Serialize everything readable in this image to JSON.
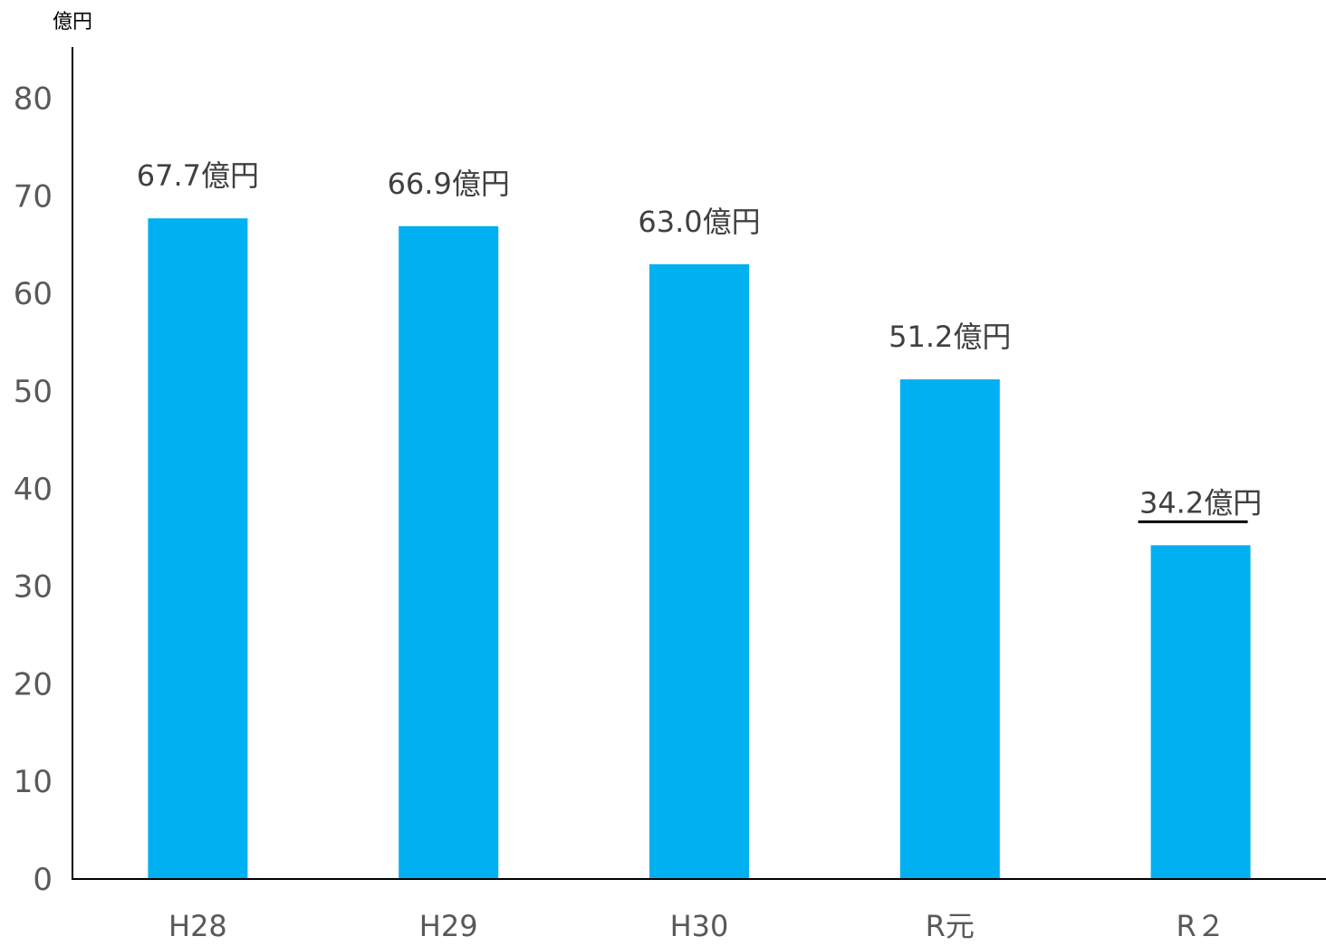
{
  "chart_data": {
    "type": "bar",
    "ylabel": "億円",
    "categories": [
      "H28",
      "H29",
      "H30",
      "R元",
      "R２"
    ],
    "values": [
      67.7,
      66.9,
      63.0,
      51.2,
      34.2
    ],
    "data_labels": [
      "67.7億円",
      "66.9億円",
      "63.0億円",
      "51.2億円",
      "34.2億円"
    ],
    "underlined_labels": [
      "34.2億円"
    ],
    "ylim": [
      0,
      80
    ],
    "yticks": [
      0,
      10,
      20,
      30,
      40,
      50,
      60,
      70,
      80
    ],
    "grid": false,
    "legend": "none",
    "colors": {
      "bar": "#00B0F0",
      "axis": "#000000",
      "tick_text": "#595959",
      "data_text": "#404040"
    }
  }
}
